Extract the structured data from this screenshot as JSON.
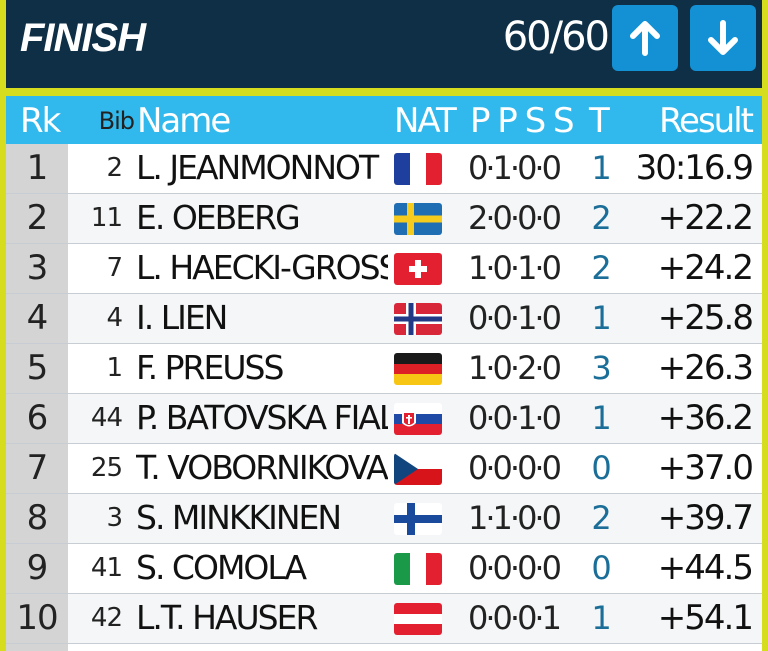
{
  "header": {
    "title": "FINISH",
    "count": "60/60",
    "up_icon": "arrow-up-icon",
    "down_icon": "arrow-down-icon",
    "colors": {
      "header_bg": "#0e2f46",
      "button_bg": "#1391d4",
      "border": "#d6dd1e"
    }
  },
  "columns": {
    "rank": "Rk",
    "bib": "Bib",
    "name": "Name",
    "nat": "NAT",
    "shooting": "P P S S",
    "total": "T",
    "result": "Result"
  },
  "rows": [
    {
      "rank": "1",
      "bib": "2",
      "name": "L. JEANMONNOT",
      "nat": "FRA",
      "shooting": "0·1·0·0",
      "total": "1",
      "result": "30:16.9"
    },
    {
      "rank": "2",
      "bib": "11",
      "name": "E. OEBERG",
      "nat": "SWE",
      "shooting": "2·0·0·0",
      "total": "2",
      "result": "+22.2"
    },
    {
      "rank": "3",
      "bib": "7",
      "name": "L. HAECKI-GROSS",
      "nat": "SUI",
      "shooting": "1·0·1·0",
      "total": "2",
      "result": "+24.2"
    },
    {
      "rank": "4",
      "bib": "4",
      "name": "I. LIEN",
      "nat": "NOR",
      "shooting": "0·0·1·0",
      "total": "1",
      "result": "+25.8"
    },
    {
      "rank": "5",
      "bib": "1",
      "name": "F. PREUSS",
      "nat": "GER",
      "shooting": "1·0·2·0",
      "total": "3",
      "result": "+26.3"
    },
    {
      "rank": "6",
      "bib": "44",
      "name": "P. BATOVSKA FIAL",
      "nat": "SVK",
      "shooting": "0·0·1·0",
      "total": "1",
      "result": "+36.2"
    },
    {
      "rank": "7",
      "bib": "25",
      "name": "T. VOBORNIKOVA",
      "nat": "CZE",
      "shooting": "0·0·0·0",
      "total": "0",
      "result": "+37.0"
    },
    {
      "rank": "8",
      "bib": "3",
      "name": "S. MINKKINEN",
      "nat": "FIN",
      "shooting": "1·1·0·0",
      "total": "2",
      "result": "+39.7"
    },
    {
      "rank": "9",
      "bib": "41",
      "name": "S. COMOLA",
      "nat": "ITA",
      "shooting": "0·0·0·0",
      "total": "0",
      "result": "+44.5"
    },
    {
      "rank": "10",
      "bib": "42",
      "name": "L.T. HAUSER",
      "nat": "AUT",
      "shooting": "0·0·0·1",
      "total": "1",
      "result": "+54.1"
    }
  ]
}
